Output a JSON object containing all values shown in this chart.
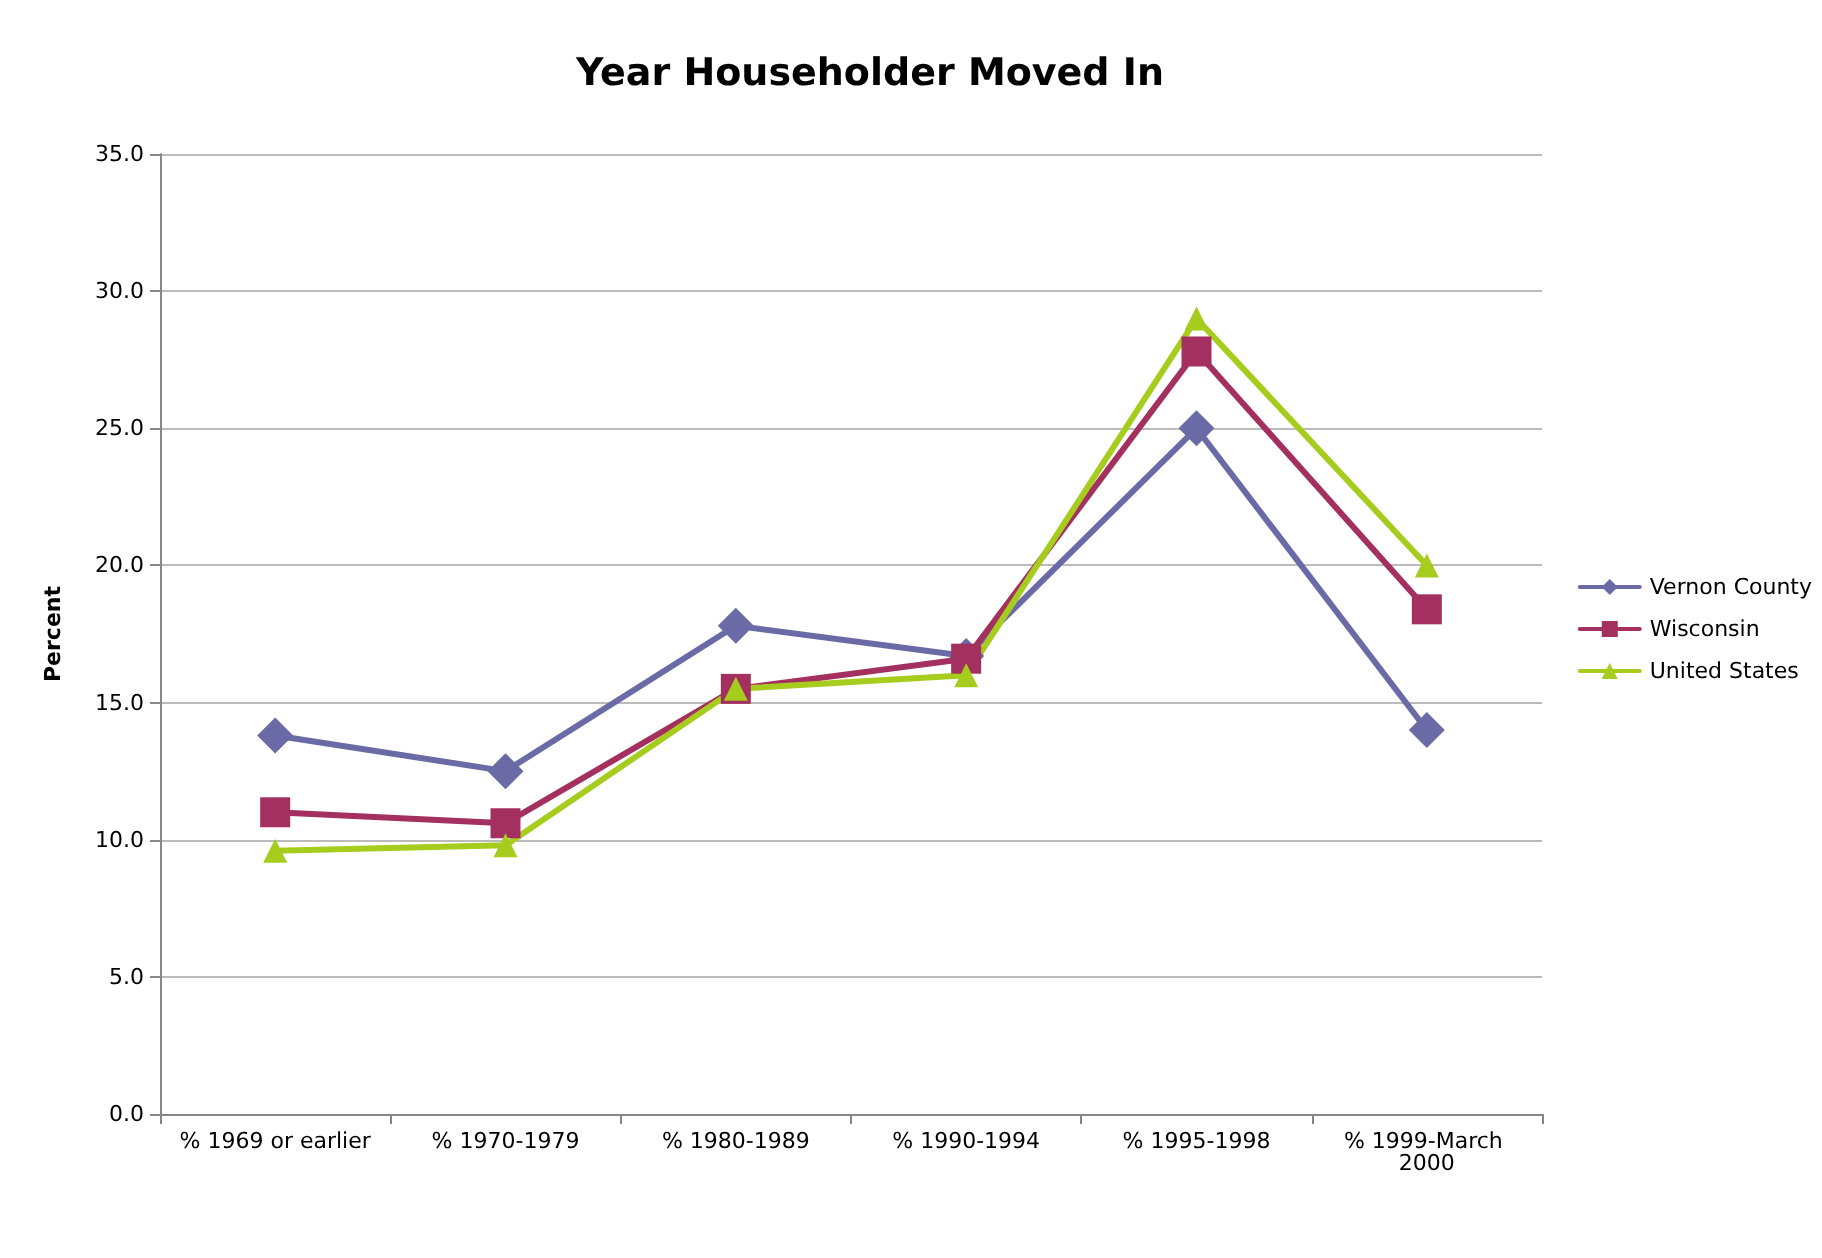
{
  "chart_data": {
    "type": "line",
    "title": "Year Householder Moved In",
    "ylabel": "Percent",
    "categories": [
      "% 1969 or earlier",
      "% 1970-1979",
      "% 1980-1989",
      "% 1990-1994",
      "% 1995-1998",
      "% 1999-March 2000"
    ],
    "series": [
      {
        "name": "Vernon County",
        "color": "#6a6aa6",
        "marker": "diamond",
        "values": [
          13.8,
          12.5,
          17.8,
          16.7,
          25.0,
          14.0
        ]
      },
      {
        "name": "Wisconsin",
        "color": "#a3305f",
        "marker": "square",
        "values": [
          11.0,
          10.6,
          15.5,
          16.6,
          27.8,
          18.4
        ]
      },
      {
        "name": "United States",
        "color": "#a6cc1e",
        "marker": "triangle",
        "values": [
          9.6,
          9.8,
          15.5,
          16.0,
          29.0,
          20.0
        ]
      }
    ],
    "ylim": [
      0,
      35
    ],
    "yticks": [
      {
        "value": 0,
        "label": "0.0"
      },
      {
        "value": 5,
        "label": "5.0"
      },
      {
        "value": 10,
        "label": "10.0"
      },
      {
        "value": 15,
        "label": "15.0"
      },
      {
        "value": 20,
        "label": "20.0"
      },
      {
        "value": 25,
        "label": "25.0"
      },
      {
        "value": 30,
        "label": "30.0"
      },
      {
        "value": 35,
        "label": "35.0"
      }
    ],
    "grid": "y",
    "legend": "right"
  }
}
